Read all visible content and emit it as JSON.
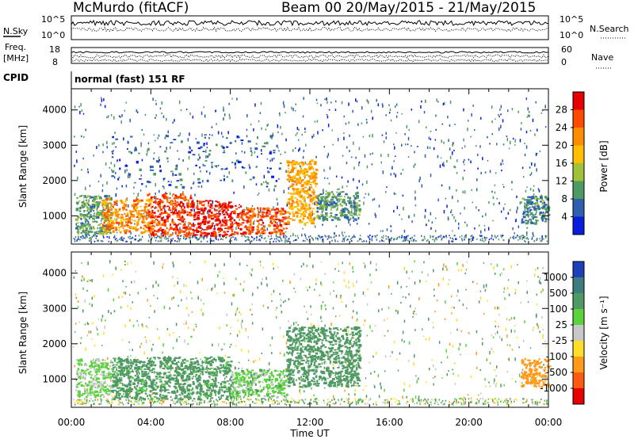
{
  "header": {
    "station": "McMurdo (fitACF)",
    "beam_info": "Beam 00  20/May/2015 - 21/May/2015"
  },
  "noise_panel": {
    "left_label": "N.Sky",
    "right_label": "N.Search",
    "left_ticks": [
      "10^5",
      "10^0"
    ],
    "right_ticks": [
      "10^5",
      "10^0"
    ]
  },
  "freq_panel": {
    "left_label_1": "Freq.",
    "left_label_2": "[MHz]",
    "right_label": "Nave",
    "left_ticks": [
      "18",
      "8"
    ],
    "right_ticks": [
      "60",
      "0"
    ]
  },
  "cpid": {
    "label": "CPID",
    "value": "normal (fast) 151 RF"
  },
  "xaxis": {
    "label": "Time UT",
    "ticks": [
      "00:00",
      "04:00",
      "08:00",
      "12:00",
      "16:00",
      "20:00",
      "00:00"
    ]
  },
  "power_colorbar": {
    "title": "Power [dB]",
    "ticks": [
      "28",
      "24",
      "20",
      "16",
      "12",
      "8",
      "4"
    ],
    "colors": [
      "#e60000",
      "#ff4b00",
      "#ff8c00",
      "#ffbe00",
      "#9fc23a",
      "#4f9a63",
      "#2f5fb0",
      "#0a1cdc"
    ]
  },
  "velocity_colorbar": {
    "title": "Velocity [m s⁻¹]",
    "ticks": [
      "1000",
      "500",
      "100",
      "25",
      "-25",
      "-100",
      "-500",
      "-1000"
    ],
    "colors": [
      "#1f3fb8",
      "#3d7c7f",
      "#4f9a63",
      "#59d23b",
      "#c8c8c8",
      "#ffde2a",
      "#ff9a1a",
      "#ff5a10",
      "#e60000"
    ]
  },
  "chart_data": [
    {
      "type": "heatmap",
      "title": "Power [dB]",
      "xlabel": "Time UT",
      "ylabel": "Slant Range [km]",
      "x_ticks": [
        "00:00",
        "04:00",
        "08:00",
        "12:00",
        "16:00",
        "20:00",
        "00:00"
      ],
      "y_ticks": [
        1000,
        2000,
        3000,
        4000
      ],
      "ylim": [
        200,
        4600
      ],
      "xlim_hours": [
        0,
        24
      ],
      "color_range": [
        0,
        32
      ],
      "regions": [
        {
          "t0": 0.2,
          "t1": 2.0,
          "r0": 500,
          "r1": 1600,
          "value": 11
        },
        {
          "t0": 1.5,
          "t1": 4.0,
          "r0": 550,
          "r1": 1500,
          "value": 22
        },
        {
          "t0": 3.8,
          "t1": 6.0,
          "r0": 450,
          "r1": 1650,
          "value": 27
        },
        {
          "t0": 6.0,
          "t1": 8.5,
          "r0": 450,
          "r1": 1450,
          "value": 29
        },
        {
          "t0": 8.5,
          "t1": 10.8,
          "r0": 500,
          "r1": 1250,
          "value": 26
        },
        {
          "t0": 10.8,
          "t1": 12.3,
          "r0": 800,
          "r1": 2600,
          "value": 20
        },
        {
          "t0": 12.3,
          "t1": 14.5,
          "r0": 900,
          "r1": 1700,
          "value": 10
        },
        {
          "t0": 22.6,
          "t1": 24.0,
          "r0": 800,
          "r1": 1600,
          "value": 9
        },
        {
          "t0": 2.0,
          "t1": 10.5,
          "r0": 1800,
          "r1": 3300,
          "value": 6
        }
      ]
    },
    {
      "type": "heatmap",
      "title": "Velocity [m s⁻¹]",
      "xlabel": "Time UT",
      "ylabel": "Slant Range [km]",
      "x_ticks": [
        "00:00",
        "04:00",
        "08:00",
        "12:00",
        "16:00",
        "20:00",
        "00:00"
      ],
      "y_ticks": [
        1000,
        2000,
        3000,
        4000
      ],
      "ylim": [
        200,
        4600
      ],
      "xlim_hours": [
        0,
        24
      ],
      "color_levels": [
        1000,
        500,
        100,
        25,
        -25,
        -100,
        -500,
        -1000
      ],
      "regions": [
        {
          "t0": 0.2,
          "t1": 2.0,
          "r0": 500,
          "r1": 1600,
          "value": 40
        },
        {
          "t0": 2.0,
          "t1": 8.0,
          "r0": 450,
          "r1": 1650,
          "value": 150
        },
        {
          "t0": 8.0,
          "t1": 10.8,
          "r0": 500,
          "r1": 1300,
          "value": 60
        },
        {
          "t0": 10.8,
          "t1": 14.5,
          "r0": 800,
          "r1": 2500,
          "value": 180
        },
        {
          "t0": 22.6,
          "t1": 24.0,
          "r0": 800,
          "r1": 1600,
          "value": -300
        }
      ]
    }
  ]
}
